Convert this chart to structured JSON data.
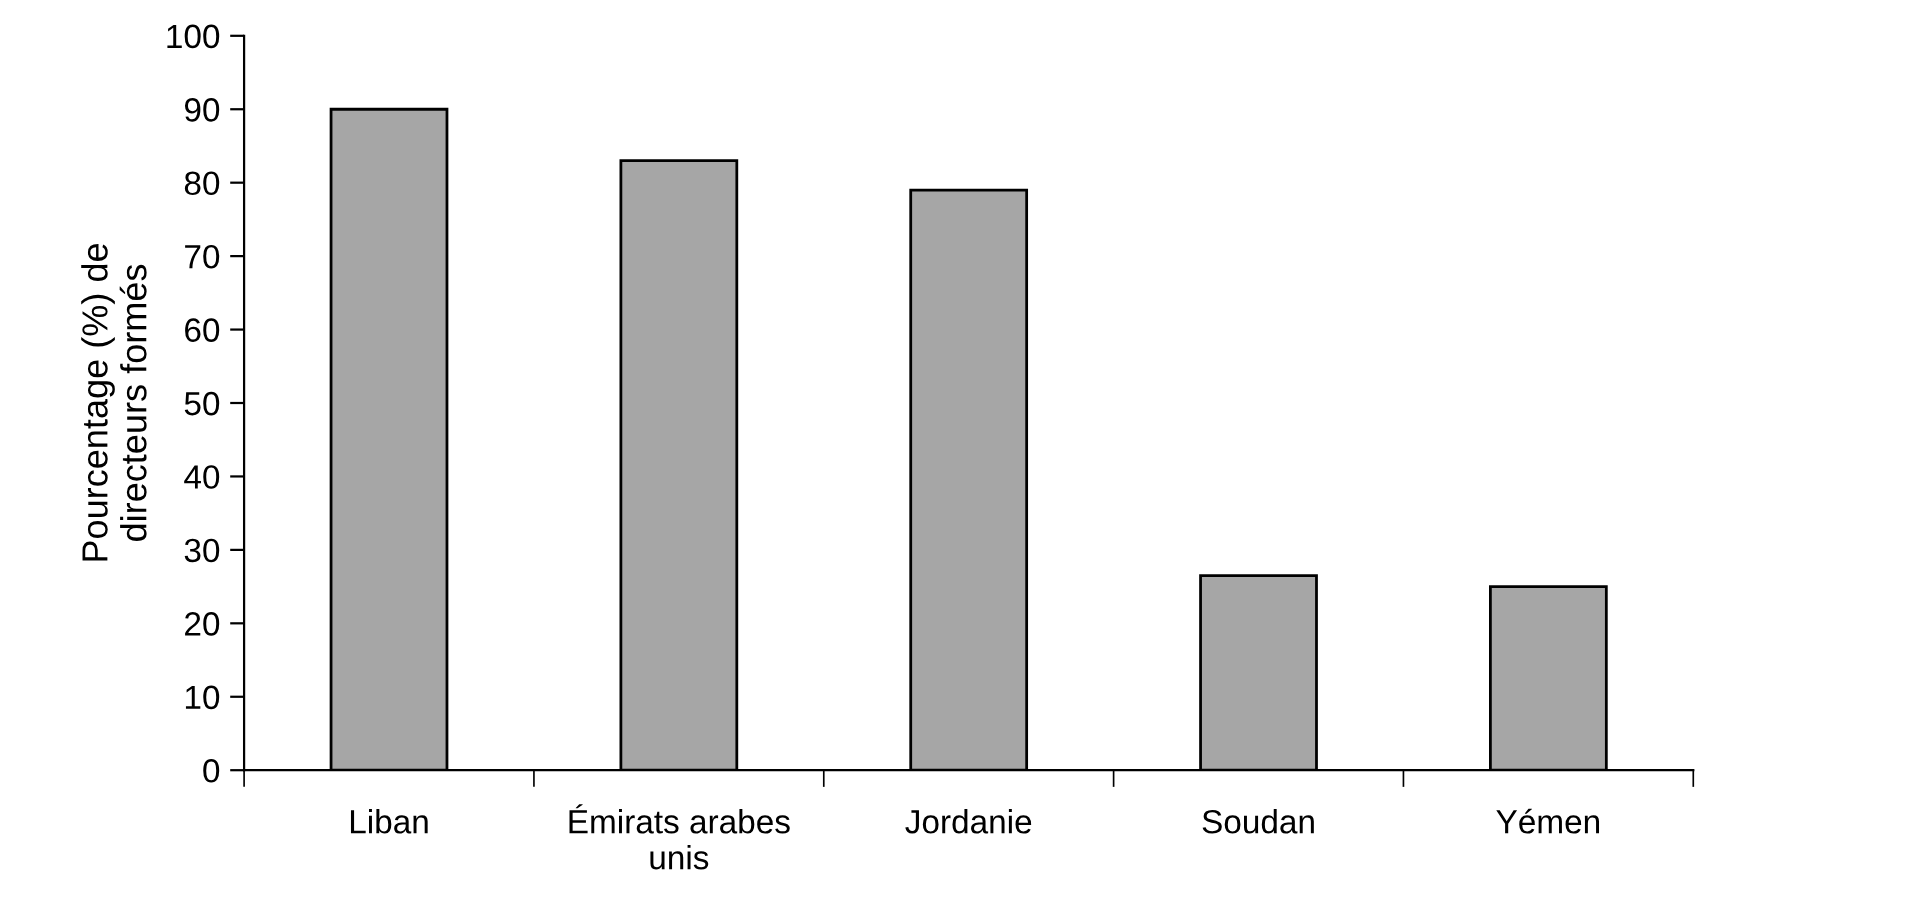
{
  "chart_data": {
    "type": "bar",
    "ylabel": "Pourcentage (%) de\ndirecteurs formés",
    "categories": [
      "Liban",
      "Émirats arabes\nunis",
      "Jordanie",
      "Soudan",
      "Yémen"
    ],
    "values": [
      90,
      83,
      79,
      26.5,
      25
    ],
    "color": "#a6a6a6",
    "ylim": [
      0,
      100
    ],
    "yticks": [
      0,
      10,
      20,
      30,
      40,
      50,
      60,
      70,
      80,
      90,
      100
    ],
    "grid": false,
    "legend": false
  }
}
